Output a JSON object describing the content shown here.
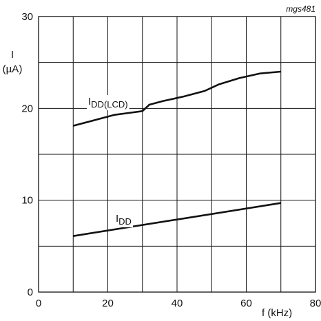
{
  "chart_data": {
    "type": "line",
    "title": "",
    "figure_id": "mgs481",
    "xlabel": "f (kHz)",
    "ylabel_line1": "I",
    "ylabel_line2": "(µA)",
    "xlim": [
      0,
      80
    ],
    "ylim": [
      0,
      30
    ],
    "x_ticks": [
      "0",
      "20",
      "40",
      "60",
      "80"
    ],
    "y_ticks": [
      "0",
      "10",
      "20",
      "30"
    ],
    "grid": true,
    "series": [
      {
        "name_main": "I",
        "name_sub": "DD(LCD)",
        "color": "#111111",
        "points": [
          [
            10,
            18.1
          ],
          [
            15,
            18.6
          ],
          [
            22,
            19.3
          ],
          [
            26,
            19.5
          ],
          [
            30,
            19.7
          ],
          [
            32,
            20.4
          ],
          [
            36,
            20.8
          ],
          [
            42,
            21.3
          ],
          [
            48,
            21.9
          ],
          [
            52,
            22.6
          ],
          [
            58,
            23.3
          ],
          [
            64,
            23.8
          ],
          [
            70,
            24.0
          ]
        ]
      },
      {
        "name_main": "I",
        "name_sub": "DD",
        "color": "#111111",
        "points": [
          [
            10,
            6.1
          ],
          [
            70,
            9.7
          ]
        ]
      }
    ]
  }
}
